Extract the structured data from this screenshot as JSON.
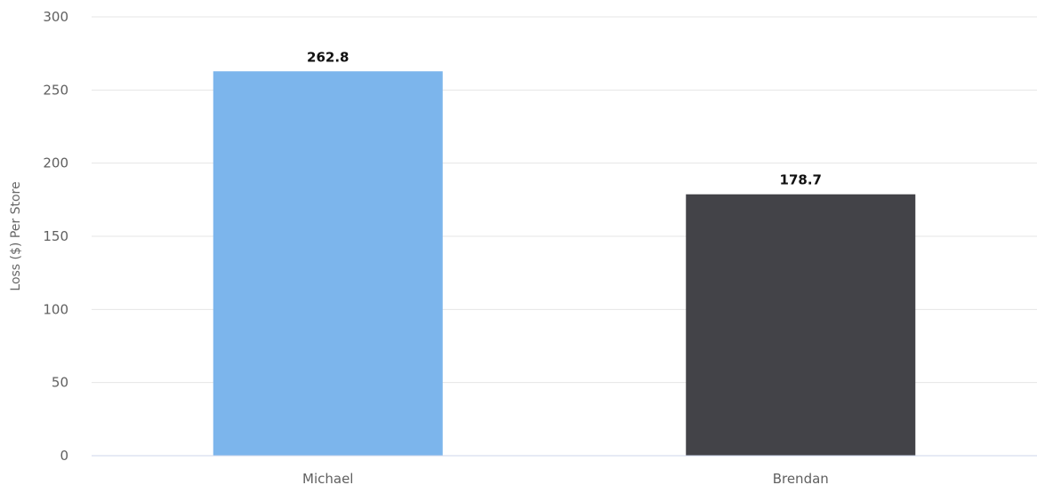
{
  "chart_data": {
    "type": "bar",
    "categories": [
      "Michael",
      "Brendan"
    ],
    "values": [
      262.8,
      178.7
    ],
    "value_labels": [
      "262.8",
      "178.7"
    ],
    "colors": [
      "#7cb5ec",
      "#434348"
    ],
    "ylabel": "Loss ($) Per Store",
    "xlabel": "",
    "ylim": [
      0,
      300
    ],
    "yticks": [
      0,
      50,
      100,
      150,
      200,
      250,
      300
    ],
    "grid": true,
    "legend": "none"
  }
}
